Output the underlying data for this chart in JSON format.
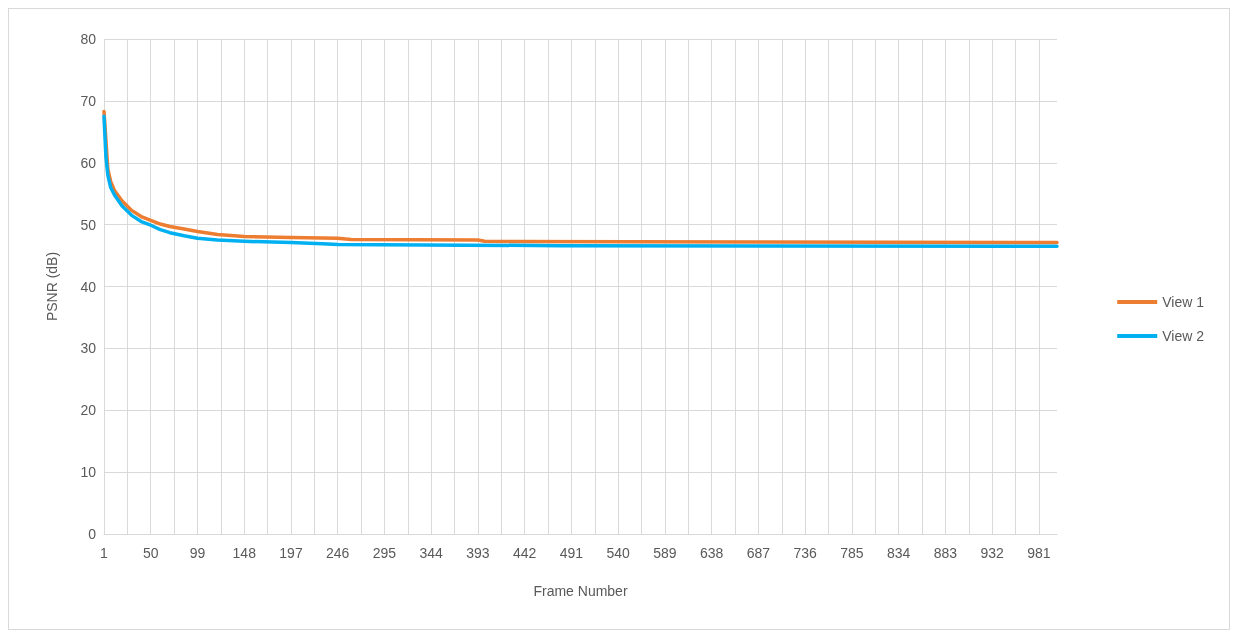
{
  "chart_data": {
    "type": "line",
    "xlabel": "Frame Number",
    "ylabel": "PSNR (dB)",
    "xlim": [
      1,
      1000
    ],
    "ylim": [
      0,
      80
    ],
    "yticks": [
      0,
      10,
      20,
      30,
      40,
      50,
      60,
      70,
      80
    ],
    "xticks": [
      1,
      {
        "value": 25.5,
        "label": null
      },
      50,
      {
        "value": 74.5,
        "label": null
      },
      99,
      {
        "value": 123.5,
        "label": null
      },
      148,
      {
        "value": 172.5,
        "label": null
      },
      197,
      {
        "value": 221.5,
        "label": null
      },
      246,
      {
        "value": 270.5,
        "label": null
      },
      295,
      {
        "value": 319.5,
        "label": null
      },
      344,
      {
        "value": 368.5,
        "label": null
      },
      393,
      {
        "value": 417.5,
        "label": null
      },
      442,
      {
        "value": 466.5,
        "label": null
      },
      491,
      {
        "value": 515.5,
        "label": null
      },
      540,
      {
        "value": 564.5,
        "label": null
      },
      589,
      {
        "value": 613.5,
        "label": null
      },
      638,
      {
        "value": 662.5,
        "label": null
      },
      687,
      {
        "value": 711.5,
        "label": null
      },
      736,
      {
        "value": 760.5,
        "label": null
      },
      785,
      {
        "value": 809.5,
        "label": null
      },
      834,
      {
        "value": 858.5,
        "label": null
      },
      883,
      {
        "value": 907.5,
        "label": null
      },
      932,
      {
        "value": 956.5,
        "label": null
      },
      981
    ],
    "grid": true,
    "legend": "right",
    "marker": "none",
    "line_style": "solid",
    "series": [
      {
        "name": "View 1",
        "color": "#ed7d31",
        "x": [
          1,
          5,
          8,
          12,
          20,
          30,
          40,
          50,
          60,
          70,
          85,
          99,
          120,
          148,
          197,
          246,
          260,
          393,
          400,
          687,
          1000
        ],
        "values": [
          68.3,
          59,
          57,
          55.5,
          53.8,
          52.3,
          51.3,
          50.7,
          50.1,
          49.7,
          49.3,
          48.9,
          48.4,
          48.1,
          47.9,
          47.8,
          47.6,
          47.5,
          47.3,
          47.2,
          47.1
        ]
      },
      {
        "name": "View 2",
        "color": "#00b0f0",
        "x": [
          1,
          3,
          5,
          8,
          12,
          20,
          30,
          40,
          50,
          60,
          70,
          85,
          99,
          120,
          148,
          197,
          230,
          246,
          480,
          1000
        ],
        "values": [
          67.5,
          61,
          58,
          56,
          54.8,
          53,
          51.5,
          50.5,
          49.9,
          49.2,
          48.7,
          48.2,
          47.8,
          47.5,
          47.3,
          47.1,
          46.9,
          46.8,
          46.6,
          46.5
        ]
      }
    ]
  }
}
